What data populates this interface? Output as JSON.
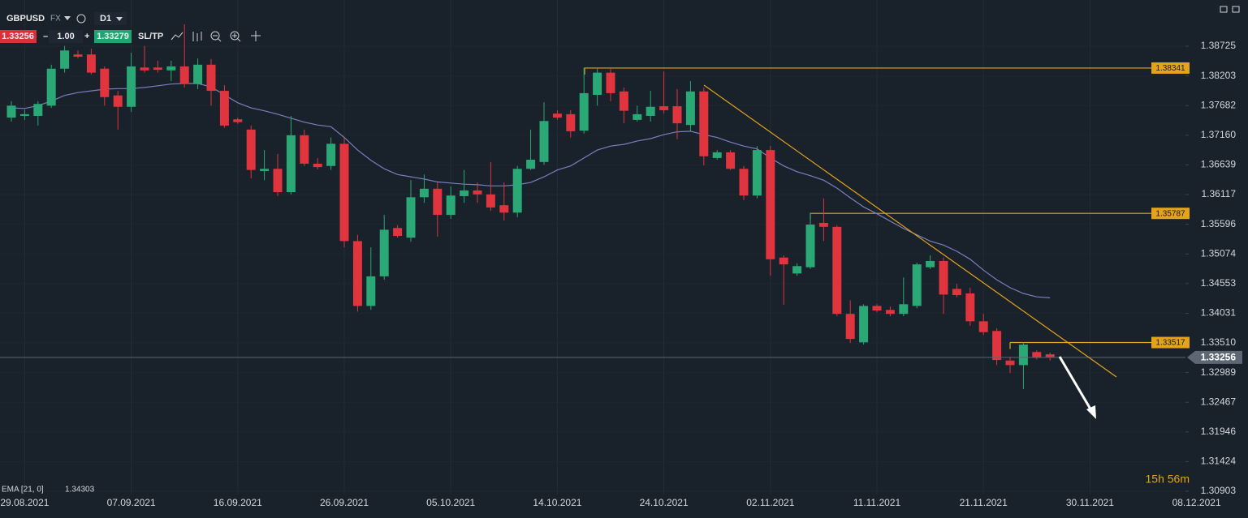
{
  "toolbar": {
    "symbol": "GBPUSD",
    "market": "FX",
    "timeframe": "D1",
    "minus": "–",
    "quantity": "1.00",
    "plus": "+",
    "buy": 1.33279,
    "sl_tp": "SL/TP"
  },
  "chart_data": {
    "type": "candlestick",
    "categories": [
      null,
      "29.08.2021",
      null,
      null,
      null,
      null,
      null,
      null,
      null,
      "07.09.2021",
      null,
      null,
      null,
      null,
      null,
      null,
      null,
      "16.09.2021",
      null,
      null,
      null,
      null,
      null,
      null,
      null,
      "26.09.2021",
      null,
      null,
      null,
      null,
      null,
      null,
      null,
      "05.10.2021",
      null,
      null,
      null,
      null,
      null,
      null,
      null,
      "14.10.2021",
      null,
      null,
      null,
      null,
      null,
      null,
      null,
      "24.10.2021",
      null,
      null,
      null,
      null,
      null,
      null,
      null,
      "02.11.2021",
      null,
      null,
      null,
      null,
      null,
      null,
      null,
      "11.11.2021",
      null,
      null,
      null,
      null,
      null,
      null,
      null,
      "21.11.2021",
      null,
      null,
      null,
      null,
      null,
      null,
      null,
      "30.11.2021",
      null,
      null,
      null,
      null,
      null,
      null,
      null,
      "08.12.2021"
    ],
    "open": [
      1.3747,
      1.375,
      1.375,
      1.3768,
      1.3833,
      1.3858,
      1.3858,
      1.3833,
      1.3786,
      1.3766,
      1.3835,
      1.3835,
      1.383,
      1.3837,
      1.3806,
      1.384,
      1.3794,
      1.3744,
      1.3726,
      1.3653,
      1.3657,
      1.3616,
      1.3716,
      1.3666,
      1.3662,
      1.3701,
      1.353,
      1.3416,
      1.3468,
      1.3553,
      1.3536,
      1.3607,
      1.3622,
      1.3576,
      1.3609,
      1.3619,
      1.3612,
      1.3593,
      1.358,
      1.3657,
      1.3669,
      1.3754,
      1.3753,
      1.3724,
      1.3787,
      1.3826,
      1.3793,
      1.3743,
      1.375,
      1.3767,
      1.3767,
      1.3734,
      1.3793,
      1.3676,
      1.3686,
      1.3657,
      1.361,
      1.369,
      1.3501,
      1.3473,
      1.3484,
      1.3562,
      1.3555,
      1.3402,
      1.3352,
      1.3416,
      1.3409,
      1.3402,
      1.3416,
      1.3484,
      1.3495,
      1.3446,
      1.3438,
      1.3389,
      1.3372,
      1.332,
      1.3312,
      1.3335,
      1.3331,
      null,
      null,
      null,
      null,
      null,
      null,
      null,
      null,
      null,
      null,
      null
    ],
    "high": [
      1.3776,
      1.3761,
      1.3776,
      1.384,
      1.3873,
      1.3865,
      1.3868,
      1.3837,
      1.3794,
      1.3861,
      1.3873,
      1.3847,
      1.3847,
      1.3911,
      1.3851,
      1.385,
      1.3804,
      1.3747,
      1.3733,
      1.369,
      1.3683,
      1.375,
      1.3726,
      1.3676,
      1.3712,
      1.3712,
      1.3541,
      1.3519,
      1.3576,
      1.3558,
      1.3637,
      1.3647,
      1.3633,
      1.3626,
      1.3655,
      1.3633,
      1.3669,
      1.3633,
      1.3662,
      1.3726,
      1.3774,
      1.376,
      1.376,
      1.3835,
      1.3833,
      1.3833,
      1.38,
      1.3768,
      1.3794,
      1.3828,
      1.3797,
      1.3811,
      1.38,
      1.369,
      1.369,
      1.3662,
      1.3697,
      1.3697,
      1.3505,
      1.3491,
      1.358,
      1.3605,
      1.3558,
      1.3426,
      1.3419,
      1.3419,
      1.3415,
      1.3466,
      1.3492,
      1.3505,
      1.3501,
      1.3455,
      1.3448,
      1.3402,
      1.3377,
      1.3327,
      1.3352,
      1.3338,
      1.3334,
      null,
      null,
      null,
      null,
      null,
      null,
      null,
      null,
      null,
      null,
      null
    ],
    "low": [
      1.374,
      1.3743,
      1.3733,
      1.3764,
      1.3826,
      1.3851,
      1.3823,
      1.3768,
      1.3726,
      1.3757,
      1.3826,
      1.3826,
      1.3811,
      1.38,
      1.3797,
      1.3768,
      1.3729,
      1.3736,
      1.364,
      1.3637,
      1.3609,
      1.3612,
      1.3662,
      1.3656,
      1.3655,
      1.3519,
      1.3406,
      1.3409,
      1.3462,
      1.3536,
      1.3529,
      1.3597,
      1.3538,
      1.3569,
      1.3597,
      1.3597,
      1.3583,
      1.3566,
      1.3572,
      1.3655,
      1.3664,
      1.3743,
      1.3712,
      1.3719,
      1.3768,
      1.3776,
      1.3737,
      1.374,
      1.374,
      1.3754,
      1.3709,
      1.3723,
      1.3663,
      1.3673,
      1.3655,
      1.3602,
      1.3605,
      1.3469,
      1.3418,
      1.3469,
      1.3481,
      1.353,
      1.3398,
      1.3351,
      1.3348,
      1.3405,
      1.3398,
      1.3398,
      1.3412,
      1.3481,
      1.3402,
      1.3431,
      1.3381,
      1.3365,
      1.3312,
      1.3298,
      1.327,
      1.3322,
      1.332,
      null,
      null,
      null,
      null,
      null,
      null,
      null,
      null,
      null,
      null,
      null
    ],
    "close": [
      1.3768,
      1.3753,
      1.3771,
      1.3833,
      1.3865,
      1.3854,
      1.3826,
      1.3783,
      1.3766,
      1.3837,
      1.383,
      1.3831,
      1.3837,
      1.3806,
      1.384,
      1.3794,
      1.3733,
      1.3739,
      1.3655,
      1.3657,
      1.3616,
      1.3716,
      1.3666,
      1.366,
      1.3701,
      1.353,
      1.3416,
      1.3468,
      1.355,
      1.3539,
      1.3607,
      1.3622,
      1.3576,
      1.361,
      1.3619,
      1.3612,
      1.3589,
      1.358,
      1.3657,
      1.3673,
      1.3741,
      1.3747,
      1.3723,
      1.379,
      1.3826,
      1.379,
      1.3759,
      1.3753,
      1.3766,
      1.376,
      1.3737,
      1.3793,
      1.3679,
      1.3686,
      1.3657,
      1.361,
      1.369,
      1.3498,
      1.3489,
      1.3486,
      1.3559,
      1.3555,
      1.3402,
      1.3358,
      1.3416,
      1.3408,
      1.3402,
      1.3419,
      1.3489,
      1.3495,
      1.3436,
      1.3435,
      1.3389,
      1.337,
      1.3321,
      1.3312,
      1.3348,
      1.3325,
      1.33256,
      null,
      null,
      null,
      null,
      null,
      null,
      null,
      null,
      null,
      null,
      null
    ],
    "up_color": "#2aa876",
    "down_color": "#e0343f",
    "overlays": [
      {
        "name": "EMA [21, 0]",
        "color": "#7a7fbd",
        "values": [
          1.3764,
          1.3763,
          1.3768,
          1.3776,
          1.3786,
          1.3791,
          1.3794,
          1.3797,
          1.3798,
          1.3798,
          1.38,
          1.3803,
          1.3806,
          1.3807,
          1.3807,
          1.3801,
          1.3787,
          1.3773,
          1.3764,
          1.3759,
          1.3753,
          1.3746,
          1.3739,
          1.3734,
          1.3731,
          1.3712,
          1.369,
          1.3672,
          1.3657,
          1.3647,
          1.3643,
          1.3639,
          1.3634,
          1.3632,
          1.363,
          1.3629,
          1.3627,
          1.3627,
          1.3629,
          1.3633,
          1.3643,
          1.3655,
          1.3662,
          1.3676,
          1.369,
          1.3697,
          1.37,
          1.3706,
          1.371,
          1.3717,
          1.3722,
          1.3723,
          1.3717,
          1.3712,
          1.3704,
          1.3697,
          1.3692,
          1.3676,
          1.3662,
          1.3652,
          1.3645,
          1.3637,
          1.3623,
          1.3606,
          1.359,
          1.3578,
          1.3565,
          1.3552,
          1.3541,
          1.353,
          1.3523,
          1.3512,
          1.3498,
          1.3479,
          1.3462,
          1.3448,
          1.3438,
          1.3432,
          1.34303,
          null,
          null,
          null,
          null,
          null,
          null,
          null,
          null,
          null,
          null,
          null
        ]
      }
    ],
    "levels": [
      {
        "value": 1.38341
      },
      {
        "value": 1.35787
      },
      {
        "value": 1.33517
      }
    ],
    "level_color": "#e3a41c",
    "last_price_color": "#5c6773",
    "timer": "15h 56m",
    "ylim": [
      1.30846,
      1.39537
    ],
    "yticks": [
      1.30903,
      1.31424,
      1.31946,
      1.32467,
      1.32989,
      {
        "value": 1.3351,
        "label": "1.33510"
      },
      1.34031,
      1.34553,
      1.35074,
      1.35596,
      1.36117,
      1.36639,
      {
        "value": 1.3716,
        "label": "1.37160"
      },
      1.37682,
      1.38203,
      1.38725
    ],
    "grid": true
  }
}
